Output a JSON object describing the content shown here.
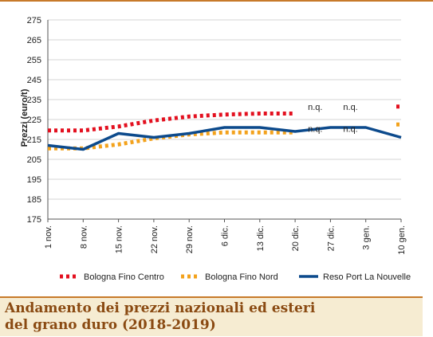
{
  "chart_data": {
    "type": "line",
    "title": "",
    "xlabel": "",
    "ylabel": "Prezzi (euro/t)",
    "ylim": [
      175,
      275
    ],
    "yticks": [
      175,
      185,
      195,
      205,
      215,
      225,
      235,
      245,
      255,
      265,
      275
    ],
    "categories": [
      "1 nov.",
      "8 nov.",
      "15 nov.",
      "22 nov.",
      "29 nov.",
      "6 dic.",
      "13 dic.",
      "20 dic.",
      "27 dic.",
      "3 gen.",
      "10 gen."
    ],
    "grid": true,
    "legend_position": "bottom",
    "series": [
      {
        "name": "Bologna Fino Centro",
        "color": "#e3101f",
        "style": "dotted",
        "values": [
          219.5,
          219.5,
          221.5,
          224.5,
          226.5,
          227.5,
          228,
          228,
          null,
          null,
          231.5
        ]
      },
      {
        "name": "Bologna Fino Nord",
        "color": "#f3a21c",
        "style": "dotted",
        "values": [
          210.5,
          210.5,
          212.5,
          215.5,
          217.5,
          218.5,
          218.5,
          218.5,
          null,
          null,
          222.5
        ]
      },
      {
        "name": "Reso Port La Nouvelle",
        "color": "#0c4a8c",
        "style": "solid",
        "values": [
          212,
          210,
          218,
          216,
          218,
          221,
          221,
          219,
          221,
          221,
          216
        ]
      }
    ],
    "annotations": [
      {
        "text": "n.q.",
        "x": "20 dic.",
        "y": 229
      },
      {
        "text": "n.q.",
        "x": "27 dic.",
        "y": 229
      },
      {
        "text": "n.q.",
        "x": "20 dic.",
        "y": 218
      },
      {
        "text": "n.q.",
        "x": "27 dic.",
        "y": 218
      }
    ]
  },
  "caption": {
    "line1": "Andamento dei prezzi nazionali ed esteri",
    "line2": "del grano duro (2018-2019)"
  },
  "colors": {
    "accent": "#c77a2a",
    "caption_bg": "#f6ecd2",
    "caption_text": "#8a4a12",
    "grid": "#c8c8c8"
  }
}
